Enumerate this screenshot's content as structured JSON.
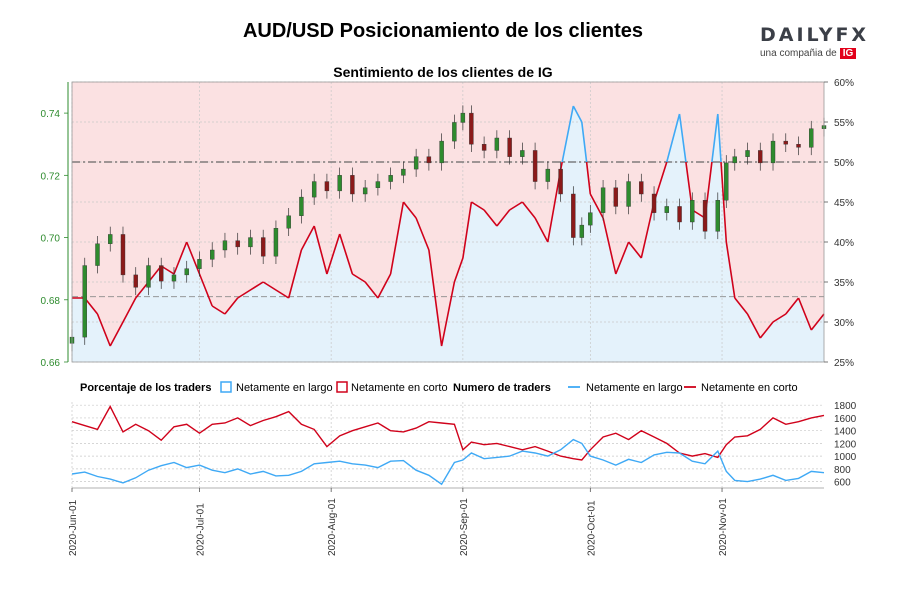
{
  "header": {
    "title": "AUD/USD Posicionamiento de los clientes",
    "subtitle": "Sentimiento de los clientes de IG",
    "logo_text": "DAILYFX",
    "logo_sub": "una compañia de",
    "logo_ig": "IG"
  },
  "legend": {
    "pct_title": "Porcentaje de los traders",
    "long": "Netamente en largo",
    "short": "Netamente en corto",
    "num_title": "Numero de traders"
  },
  "colors": {
    "long_line": "#3fa9f5",
    "short_line": "#d0021b",
    "long_fill": "#e4f2fb",
    "short_fill": "#fbe1e2",
    "candle_up": "#2e8b2e",
    "candle_down": "#8b1a1a",
    "left_axis": "#2e8b2e"
  },
  "chart_data": [
    {
      "type": "candlestick+area",
      "name": "price_sentiment",
      "title": "Sentimiento de los clientes de IG",
      "y_left": {
        "label": "",
        "ticks": [
          "0.66",
          "0.68",
          "0.70",
          "0.72",
          "0.74"
        ],
        "lim": [
          0.66,
          0.75
        ]
      },
      "y_right": {
        "label": "",
        "ticks": [
          "25%",
          "30%",
          "35%",
          "40%",
          "45%",
          "50%",
          "55%",
          "60%"
        ],
        "lim": [
          25,
          60
        ]
      },
      "x_ticks": [
        "2020-Jun-01",
        "2020-Jul-01",
        "2020-Aug-01",
        "2020-Sep-01",
        "2020-Oct-01",
        "2020-Nov-01"
      ],
      "x_tick_days": [
        0,
        30,
        61,
        92,
        122,
        153
      ],
      "x_lim_days": [
        0,
        177
      ],
      "ref_line_pct": 50,
      "ref_line_price": 0.681,
      "net_long_pct": {
        "days": [
          0,
          3,
          6,
          9,
          12,
          15,
          18,
          21,
          24,
          27,
          30,
          33,
          36,
          39,
          42,
          45,
          48,
          51,
          54,
          57,
          60,
          63,
          66,
          69,
          72,
          75,
          78,
          81,
          84,
          87,
          90,
          92,
          94,
          97,
          100,
          103,
          106,
          109,
          112,
          115,
          118,
          120,
          122,
          125,
          128,
          131,
          134,
          137,
          140,
          143,
          146,
          149,
          152,
          154,
          156,
          159,
          162,
          165,
          168,
          171,
          174,
          177
        ],
        "values": [
          33,
          33,
          31,
          27,
          30,
          33,
          35,
          37,
          36,
          40,
          36,
          32,
          31,
          33,
          34,
          35,
          34,
          33,
          39,
          42,
          36,
          41,
          36,
          35,
          33,
          36,
          45,
          43,
          39,
          27,
          35,
          38,
          45,
          44,
          42,
          44,
          45,
          43,
          40,
          49,
          57,
          55,
          46,
          43,
          36,
          40,
          38,
          45,
          50,
          56,
          44,
          43,
          56,
          40,
          33,
          31,
          28,
          30,
          31,
          33,
          29,
          31
        ]
      },
      "candles": {
        "days": [
          0,
          3,
          6,
          9,
          12,
          15,
          18,
          21,
          24,
          27,
          30,
          33,
          36,
          39,
          42,
          45,
          48,
          51,
          54,
          57,
          60,
          63,
          66,
          69,
          72,
          75,
          78,
          81,
          84,
          87,
          90,
          92,
          94,
          97,
          100,
          103,
          106,
          109,
          112,
          115,
          118,
          120,
          122,
          125,
          128,
          131,
          134,
          137,
          140,
          143,
          146,
          149,
          152,
          154,
          156,
          159,
          162,
          165,
          168,
          171,
          174,
          177
        ],
        "close": [
          0.668,
          0.691,
          0.698,
          0.701,
          0.688,
          0.684,
          0.691,
          0.686,
          0.688,
          0.69,
          0.693,
          0.696,
          0.699,
          0.697,
          0.7,
          0.694,
          0.703,
          0.707,
          0.713,
          0.718,
          0.715,
          0.72,
          0.714,
          0.716,
          0.718,
          0.72,
          0.722,
          0.726,
          0.724,
          0.731,
          0.737,
          0.74,
          0.73,
          0.728,
          0.732,
          0.726,
          0.728,
          0.718,
          0.722,
          0.714,
          0.7,
          0.704,
          0.708,
          0.716,
          0.71,
          0.718,
          0.714,
          0.708,
          0.71,
          0.705,
          0.712,
          0.702,
          0.712,
          0.724,
          0.726,
          0.728,
          0.724,
          0.731,
          0.73,
          0.729,
          0.735,
          0.736
        ]
      }
    },
    {
      "type": "line",
      "name": "trader_counts",
      "title": "Numero de traders",
      "y_ticks": [
        "600",
        "800",
        "1000",
        "1200",
        "1400",
        "1600",
        "1800"
      ],
      "ylim": [
        500,
        1850
      ],
      "x_ticks": [
        "2020-Jun-01",
        "2020-Jul-01",
        "2020-Aug-01",
        "2020-Sep-01",
        "2020-Oct-01",
        "2020-Nov-01"
      ],
      "series": [
        {
          "name": "Netamente en largo",
          "days": [
            0,
            3,
            6,
            9,
            12,
            15,
            18,
            21,
            24,
            27,
            30,
            33,
            36,
            39,
            42,
            45,
            48,
            51,
            54,
            57,
            60,
            63,
            66,
            69,
            72,
            75,
            78,
            81,
            84,
            87,
            90,
            92,
            94,
            97,
            100,
            103,
            106,
            109,
            112,
            115,
            118,
            120,
            122,
            125,
            128,
            131,
            134,
            137,
            140,
            143,
            146,
            149,
            152,
            154,
            156,
            159,
            162,
            165,
            168,
            171,
            174,
            177
          ],
          "values": [
            720,
            750,
            680,
            640,
            580,
            660,
            780,
            850,
            900,
            820,
            860,
            780,
            740,
            800,
            720,
            760,
            690,
            700,
            760,
            880,
            900,
            920,
            880,
            860,
            820,
            920,
            930,
            780,
            700,
            560,
            900,
            940,
            1050,
            960,
            980,
            1000,
            1080,
            1050,
            1000,
            1100,
            1260,
            1200,
            1000,
            940,
            860,
            950,
            900,
            1020,
            1060,
            1050,
            920,
            880,
            1080,
            760,
            620,
            600,
            640,
            700,
            620,
            650,
            760,
            740
          ]
        },
        {
          "name": "Netamente en corto",
          "days": [
            0,
            3,
            6,
            9,
            12,
            15,
            18,
            21,
            24,
            27,
            30,
            33,
            36,
            39,
            42,
            45,
            48,
            51,
            54,
            57,
            60,
            63,
            66,
            69,
            72,
            75,
            78,
            81,
            84,
            87,
            90,
            92,
            94,
            97,
            100,
            103,
            106,
            109,
            112,
            115,
            118,
            120,
            122,
            125,
            128,
            131,
            134,
            137,
            140,
            143,
            146,
            149,
            152,
            154,
            156,
            159,
            162,
            165,
            168,
            171,
            174,
            177
          ],
          "values": [
            1540,
            1480,
            1420,
            1780,
            1380,
            1500,
            1400,
            1250,
            1460,
            1500,
            1360,
            1500,
            1520,
            1600,
            1480,
            1560,
            1620,
            1700,
            1500,
            1420,
            1150,
            1320,
            1400,
            1460,
            1520,
            1400,
            1380,
            1440,
            1540,
            1520,
            1500,
            1100,
            1220,
            1180,
            1200,
            1150,
            1100,
            1150,
            1080,
            1000,
            960,
            940,
            1100,
            1300,
            1360,
            1260,
            1400,
            1300,
            1200,
            1050,
            1000,
            1040,
            980,
            1180,
            1300,
            1320,
            1420,
            1600,
            1500,
            1540,
            1600,
            1640
          ]
        }
      ]
    }
  ]
}
